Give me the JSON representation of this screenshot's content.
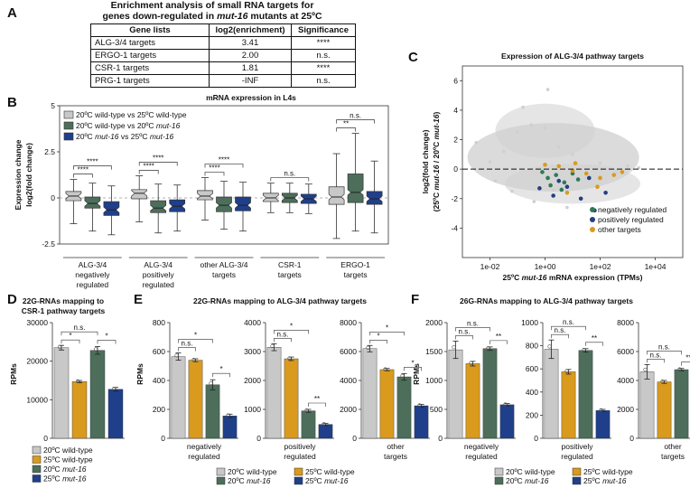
{
  "panels": {
    "A": "A",
    "B": "B",
    "C": "C",
    "D": "D",
    "E": "E",
    "F": "F"
  },
  "table": {
    "title_line1": "Enrichment analysis of small RNA targets for",
    "title_line2_pre": "genes down-regulated in ",
    "title_line2_em": "mut-16",
    "title_line2_post": " mutants at 25ºC",
    "headers": [
      "Gene lists",
      "log2(enrichment)",
      "Significance"
    ],
    "rows": [
      [
        "ALG-3/4 targets",
        "3.41",
        "****"
      ],
      [
        "ERGO-1 targets",
        "2.00",
        "n.s."
      ],
      [
        "CSR-1 targets",
        "1.81",
        "****"
      ],
      [
        "PRG-1 targets",
        "-INF",
        "n.s."
      ]
    ]
  },
  "colors": {
    "gray": "#c8c8c8",
    "darkgreen": "#4c6e5a",
    "blue": "#1f3f8a",
    "orange": "#d99a1e",
    "lightgray": "#cfcfcf",
    "green": "#2f7a55",
    "navy": "#243f7f"
  },
  "chart_data": [
    {
      "id": "B",
      "type": "box",
      "title": "mRNA expression in L4s",
      "ylabel": "Expression change log2(fold change)",
      "ylim": [
        -2.5,
        5
      ],
      "yticks": [
        "5",
        "2.5",
        "0",
        "-2.5"
      ],
      "legend": [
        {
          "pre": "20ºC wild-type vs 25ºC wild-type",
          "em": "",
          "post": ""
        },
        {
          "pre": "20ºC wild-type vs 20ºC ",
          "em": "mut-16",
          "post": ""
        },
        {
          "pre": "20ºC ",
          "em": "mut-16",
          "post": " vs 25ºC mut-16"
        }
      ],
      "groups": [
        {
          "label": [
            "ALG-3/4",
            "negatively",
            "regulated"
          ],
          "boxes": [
            [
              -1.4,
              -0.15,
              0.1,
              0.35,
              1.0
            ],
            [
              -1.8,
              -0.55,
              -0.3,
              0.05,
              0.8
            ],
            [
              -2.0,
              -0.95,
              -0.65,
              -0.2,
              0.65
            ]
          ],
          "sig": [
            {
              "a": 0,
              "b": 1,
              "t": "****"
            },
            {
              "a": 0,
              "b": 2,
              "t": "****"
            }
          ]
        },
        {
          "label": [
            "ALG-3/4",
            "positively",
            "regulated"
          ],
          "boxes": [
            [
              -1.3,
              -0.05,
              0.25,
              0.45,
              1.2
            ],
            [
              -1.9,
              -0.8,
              -0.55,
              -0.15,
              0.75
            ],
            [
              -1.8,
              -0.75,
              -0.45,
              -0.1,
              0.7
            ]
          ],
          "sig": [
            {
              "a": 0,
              "b": 1,
              "t": "****"
            },
            {
              "a": 0,
              "b": 2,
              "t": "****"
            }
          ]
        },
        {
          "label": [
            "other ALG-3/4",
            "targets",
            ""
          ],
          "boxes": [
            [
              -1.2,
              -0.1,
              0.1,
              0.4,
              1.1
            ],
            [
              -1.7,
              -0.75,
              -0.4,
              0.05,
              0.9
            ],
            [
              -1.8,
              -0.7,
              -0.4,
              0.05,
              0.85
            ]
          ],
          "sig": [
            {
              "a": 0,
              "b": 1,
              "t": "****"
            },
            {
              "a": 0,
              "b": 2,
              "t": "****"
            }
          ]
        },
        {
          "label": [
            "CSR-1",
            "targets",
            ""
          ],
          "boxes": [
            [
              -0.8,
              -0.2,
              0.0,
              0.25,
              0.8
            ],
            [
              -0.8,
              -0.25,
              0.0,
              0.25,
              0.8
            ],
            [
              -0.85,
              -0.3,
              -0.05,
              0.2,
              0.75
            ]
          ],
          "sig": [
            {
              "a": 0,
              "b": 2,
              "t": "n.s."
            }
          ]
        },
        {
          "label": [
            "ERGO-1",
            "targets",
            ""
          ],
          "boxes": [
            [
              -2.2,
              -0.35,
              0.05,
              0.6,
              2.4
            ],
            [
              -1.8,
              -0.25,
              0.3,
              1.3,
              3.5
            ],
            [
              -1.9,
              -0.35,
              -0.05,
              0.35,
              2.0
            ]
          ],
          "sig": [
            {
              "a": 0,
              "b": 1,
              "t": "**"
            },
            {
              "a": 0,
              "b": 2,
              "t": "n.s."
            }
          ]
        }
      ]
    },
    {
      "id": "C",
      "type": "scatter",
      "title": "Expression of ALG-3/4 pathway targets",
      "xlabel_pre": "25ºC ",
      "xlabel_em": "mut-16",
      "xlabel_post": " mRNA expression (TPMs)",
      "ylabel_line1": "log2(fold change)",
      "ylabel_line2_pre": "(25ºC ",
      "ylabel_line2_em1": "mut-16",
      "ylabel_line2_mid": " / 20ºC ",
      "ylabel_line2_em2": "mut-16",
      "ylabel_line2_post": ")",
      "xticks": [
        "1e-02",
        "1e+00",
        "1e+02",
        "1e+04"
      ],
      "yticks": [
        "6",
        "4",
        "2",
        "0",
        "-2",
        "-4"
      ],
      "xlim_log10": [
        -3,
        5
      ],
      "ylim": [
        -6,
        7
      ],
      "legend": [
        "negatively regulated",
        "positively regulated",
        "other targets"
      ],
      "series": [
        {
          "name": "all genes",
          "points": [
            [
              -1.5,
              1.2
            ],
            [
              -1,
              2.5
            ],
            [
              -0.5,
              3
            ],
            [
              0,
              2.8
            ],
            [
              0.5,
              1.5
            ],
            [
              1,
              1
            ],
            [
              -2,
              0.5
            ],
            [
              -2.5,
              1.8
            ],
            [
              -1.2,
              -1.5
            ],
            [
              -0.4,
              -2.2
            ],
            [
              0.3,
              -1.4
            ],
            [
              1.5,
              -0.6
            ],
            [
              2,
              0.4
            ],
            [
              2.6,
              -0.2
            ],
            [
              3,
              0.2
            ],
            [
              3.4,
              0.1
            ],
            [
              -0.8,
              4.2
            ],
            [
              0.1,
              5.4
            ],
            [
              -1.8,
              -0.8
            ],
            [
              0.8,
              -2.6
            ]
          ]
        },
        {
          "name": "negatively regulated",
          "points": [
            [
              0.1,
              -0.6
            ],
            [
              0.4,
              -0.4
            ],
            [
              0.7,
              -0.9
            ],
            [
              1.0,
              -0.3
            ],
            [
              0.2,
              -1.1
            ],
            [
              -0.1,
              -0.2
            ],
            [
              0.6,
              -1.4
            ],
            [
              1.2,
              -0.7
            ]
          ]
        },
        {
          "name": "positively regulated",
          "points": [
            [
              0.3,
              -1.8
            ],
            [
              0.8,
              -1.2
            ],
            [
              1.3,
              -2.0
            ],
            [
              1.8,
              -2.8
            ],
            [
              2.2,
              -1.6
            ],
            [
              1.6,
              -0.6
            ],
            [
              0.5,
              -0.8
            ],
            [
              -0.2,
              -1.3
            ]
          ]
        },
        {
          "name": "other targets",
          "points": [
            [
              0.5,
              0.2
            ],
            [
              1.0,
              -0.1
            ],
            [
              1.5,
              -0.3
            ],
            [
              2.0,
              -0.6
            ],
            [
              2.5,
              -0.4
            ],
            [
              1.1,
              0.4
            ],
            [
              0.0,
              0.3
            ],
            [
              1.9,
              -1.2
            ],
            [
              0.8,
              -1.6
            ],
            [
              2.8,
              -0.2
            ]
          ]
        }
      ]
    },
    {
      "id": "D",
      "type": "bar",
      "title": [
        "22G-RNAs mapping to",
        "CSR-1 pathway targets"
      ],
      "ylabel": "RPMs",
      "ylim": [
        0,
        30000
      ],
      "yticks": [
        "30000",
        "20000",
        "10000",
        "0"
      ],
      "values": [
        23500,
        14700,
        22800,
        12700
      ],
      "errors": [
        600,
        300,
        1000,
        500
      ],
      "sig": [
        {
          "a": 0,
          "b": 1,
          "t": "*"
        },
        {
          "a": 0,
          "b": 2,
          "t": "n.s."
        },
        {
          "a": 2,
          "b": 3,
          "t": "*"
        }
      ],
      "legend": [
        {
          "pre": "20ºC wild-type",
          "em": ""
        },
        {
          "pre": "25ºC wild-type",
          "em": ""
        },
        {
          "pre": "20ºC ",
          "em": "mut-16"
        },
        {
          "pre": "25ºC ",
          "em": "mut-16"
        }
      ]
    },
    {
      "id": "E",
      "type": "bar",
      "title": "22G-RNAs mapping to ALG-3/4 pathway targets",
      "ylabel": "RPMs",
      "legend": [
        {
          "pre": "20ºC wild-type",
          "em": ""
        },
        {
          "pre": "25ºC wild-type",
          "em": ""
        },
        {
          "pre": "20ºC ",
          "em": "mut-16"
        },
        {
          "pre": "25ºC ",
          "em": "mut-16"
        }
      ],
      "subplots": [
        {
          "label": [
            "negatively",
            "regulated"
          ],
          "ylim": [
            0,
            800
          ],
          "yticks": [
            "800",
            "600",
            "400",
            "200",
            "0"
          ],
          "values": [
            565,
            540,
            370,
            155
          ],
          "errors": [
            25,
            10,
            35,
            12
          ],
          "sig": [
            {
              "a": 0,
              "b": 1,
              "t": "n.s."
            },
            {
              "a": 0,
              "b": 2,
              "t": "*"
            },
            {
              "a": 2,
              "b": 3,
              "t": "*"
            }
          ]
        },
        {
          "label": [
            "positively",
            "regulated"
          ],
          "ylim": [
            0,
            4000
          ],
          "yticks": [
            "4000",
            "3000",
            "2000",
            "1000",
            "0"
          ],
          "values": [
            3150,
            2750,
            950,
            480
          ],
          "errors": [
            120,
            60,
            50,
            40
          ],
          "sig": [
            {
              "a": 0,
              "b": 1,
              "t": "n.s."
            },
            {
              "a": 0,
              "b": 2,
              "t": "*"
            },
            {
              "a": 2,
              "b": 3,
              "t": "**"
            }
          ]
        },
        {
          "label": [
            "other",
            "targets"
          ],
          "ylim": [
            0,
            8000
          ],
          "yticks": [
            "8000",
            "6000",
            "4000",
            "2000",
            "0"
          ],
          "values": [
            6200,
            4750,
            4250,
            2250
          ],
          "errors": [
            220,
            80,
            230,
            100
          ],
          "sig": [
            {
              "a": 0,
              "b": 1,
              "t": "*"
            },
            {
              "a": 0,
              "b": 2,
              "t": "*"
            },
            {
              "a": 2,
              "b": 3,
              "t": "*"
            }
          ]
        }
      ]
    },
    {
      "id": "F",
      "type": "bar",
      "title": "26G-RNAs mapping to ALG-3/4 pathway targets",
      "ylabel": "RPMs",
      "legend": [
        {
          "pre": "20ºC wild-type",
          "em": ""
        },
        {
          "pre": "25ºC wild-type",
          "em": ""
        },
        {
          "pre": "20ºC ",
          "em": "mut-16"
        },
        {
          "pre": "25ºC ",
          "em": "mut-16"
        }
      ],
      "subplots": [
        {
          "label": [
            "negatively",
            "regulated"
          ],
          "ylim": [
            0,
            2000
          ],
          "yticks": [
            "2000",
            "1500",
            "1000",
            "500",
            "0"
          ],
          "values": [
            1530,
            1290,
            1550,
            580
          ],
          "errors": [
            150,
            40,
            30,
            20
          ],
          "sig": [
            {
              "a": 0,
              "b": 1,
              "t": "n.s."
            },
            {
              "a": 0,
              "b": 2,
              "t": "n.s."
            },
            {
              "a": 2,
              "b": 3,
              "t": "**"
            }
          ]
        },
        {
          "label": [
            "positively",
            "regulated"
          ],
          "ylim": [
            0,
            1000
          ],
          "yticks": [
            "1000",
            "800",
            "600",
            "400",
            "200",
            "0"
          ],
          "values": [
            770,
            575,
            760,
            240
          ],
          "errors": [
            80,
            20,
            15,
            10
          ],
          "sig": [
            {
              "a": 0,
              "b": 1,
              "t": "n.s."
            },
            {
              "a": 0,
              "b": 2,
              "t": "n.s."
            },
            {
              "a": 2,
              "b": 3,
              "t": "**"
            }
          ]
        },
        {
          "label": [
            "other",
            "targets"
          ],
          "ylim": [
            0,
            8000
          ],
          "yticks": [
            "8000",
            "6000",
            "4000",
            "2000",
            "0"
          ],
          "values": [
            4600,
            3900,
            4750,
            1700
          ],
          "errors": [
            500,
            100,
            80,
            60
          ],
          "sig": [
            {
              "a": 0,
              "b": 1,
              "t": "n.s."
            },
            {
              "a": 0,
              "b": 2,
              "t": "n.s."
            },
            {
              "a": 2,
              "b": 3,
              "t": "***"
            }
          ]
        }
      ]
    }
  ]
}
